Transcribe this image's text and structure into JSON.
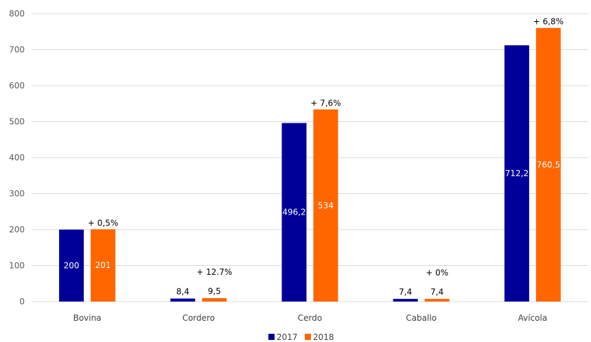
{
  "chart_data": {
    "type": "bar",
    "categories": [
      "Bovina",
      "Cordero",
      "Cerdo",
      "Caballo",
      "Avícola"
    ],
    "series": [
      {
        "name": "2017",
        "color": "#000099",
        "values": [
          200,
          8.4,
          496.2,
          7.4,
          712.2
        ],
        "labels": [
          "200",
          "8,4",
          "496,2",
          "7,4",
          "712,2"
        ]
      },
      {
        "name": "2018",
        "color": "#ff6600",
        "values": [
          201,
          9.5,
          534,
          7.4,
          760.5
        ],
        "labels": [
          "201",
          "9,5",
          "534",
          "7,4",
          "760,5"
        ]
      }
    ],
    "changes": [
      "+ 0,5%",
      "+ 12.7%",
      "+ 7,6%",
      "+ 0%",
      "+ 6,8%"
    ],
    "ylim": [
      0,
      800
    ],
    "yticks": [
      0,
      100,
      200,
      300,
      400,
      500,
      600,
      700,
      800
    ],
    "grid": true,
    "legend": "bottom",
    "title": "",
    "xlabel": "",
    "ylabel": ""
  }
}
